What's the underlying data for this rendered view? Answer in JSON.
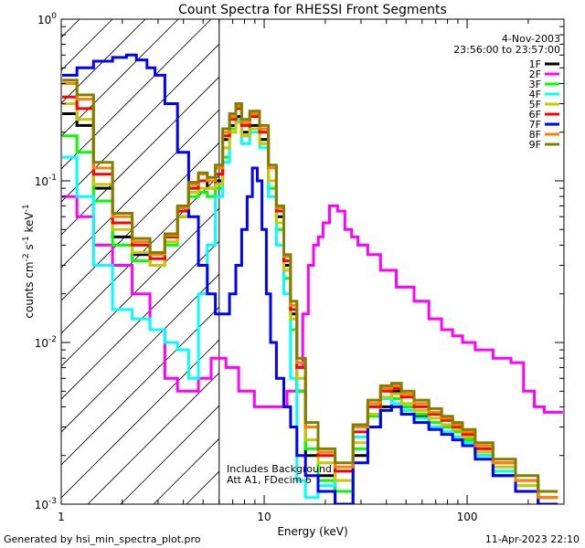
{
  "chart_data": {
    "type": "line",
    "title": "Count Spectra for RHESSI Front Segments",
    "xlabel": "Energy (keV)",
    "ylabel_parts": {
      "a": "counts cm",
      "b": "-2",
      "c": " s",
      "d": "-1",
      "e": " keV",
      "f": "-1"
    },
    "x_scale": "log",
    "y_scale": "log",
    "xlim": [
      1,
      300
    ],
    "ylim": [
      0.001,
      1
    ],
    "x_ticks": [
      {
        "v": 1,
        "label": "1"
      },
      {
        "v": 10,
        "label": "10"
      },
      {
        "v": 100,
        "label": "100"
      }
    ],
    "y_ticks": [
      {
        "v": 1,
        "base": "10",
        "exp": "0"
      },
      {
        "v": 0.1,
        "base": "10",
        "exp": "-1"
      },
      {
        "v": 0.01,
        "base": "10",
        "exp": "-2"
      },
      {
        "v": 0.001,
        "base": "10",
        "exp": "-3"
      }
    ],
    "date": "4-Nov-2003",
    "time_range": "23:56:00 to 23:57:00",
    "shaded_region_xmax": 6,
    "annotations": [
      "Includes Background",
      "Att A1, FDecim 6"
    ],
    "legend_position": "top-right",
    "series": [
      {
        "name": "1F",
        "color": "#000000",
        "x": [
          1.1,
          1.3,
          1.6,
          2,
          2.5,
          3,
          3.5,
          4,
          4.5,
          5,
          5.5,
          6,
          6.5,
          7,
          7.5,
          8,
          9,
          10,
          11,
          12,
          13,
          14,
          15,
          17,
          20,
          25,
          30,
          35,
          40,
          45,
          50,
          60,
          70,
          80,
          90,
          100,
          120,
          150,
          200,
          250
        ],
        "y": [
          0.26,
          0.22,
          0.09,
          0.045,
          0.035,
          0.03,
          0.045,
          0.06,
          0.09,
          0.1,
          0.09,
          0.1,
          0.18,
          0.22,
          0.25,
          0.2,
          0.22,
          0.18,
          0.1,
          0.06,
          0.03,
          0.015,
          0.005,
          0.002,
          0.0015,
          0.001,
          0.002,
          0.003,
          0.004,
          0.005,
          0.004,
          0.0035,
          0.003,
          0.003,
          0.003,
          0.0025,
          0.002,
          0.0015,
          0.0012,
          0.001
        ]
      },
      {
        "name": "2F",
        "color": "#ff00ff",
        "x": [
          1.1,
          1.3,
          1.6,
          2,
          2.5,
          3,
          3.5,
          4,
          4.5,
          5,
          6,
          7,
          8,
          10,
          12,
          14,
          15,
          16,
          17,
          18,
          19,
          20,
          22,
          24,
          26,
          28,
          30,
          35,
          40,
          50,
          60,
          70,
          80,
          90,
          100,
          120,
          150,
          180,
          200,
          230,
          250,
          280
        ],
        "y": [
          0.08,
          0.06,
          0.04,
          0.03,
          0.02,
          0.012,
          0.006,
          0.005,
          0.005,
          0.006,
          0.008,
          0.007,
          0.005,
          0.004,
          0.004,
          0.005,
          0.007,
          0.015,
          0.03,
          0.04,
          0.045,
          0.055,
          0.07,
          0.065,
          0.05,
          0.045,
          0.04,
          0.035,
          0.028,
          0.022,
          0.018,
          0.014,
          0.012,
          0.011,
          0.01,
          0.009,
          0.008,
          0.0075,
          0.005,
          0.004,
          0.0037,
          0.0037
        ]
      },
      {
        "name": "3F",
        "color": "#00ff00",
        "x": [
          1.1,
          1.3,
          1.6,
          2,
          2.5,
          3,
          3.5,
          4,
          4.5,
          5,
          5.5,
          6,
          6.5,
          7,
          7.5,
          8,
          9,
          10,
          11,
          12,
          13,
          14,
          15,
          17,
          20,
          25,
          30,
          35,
          40,
          45,
          50,
          60,
          70,
          80,
          90,
          100,
          120,
          150,
          200,
          250
        ],
        "y": [
          0.19,
          0.15,
          0.075,
          0.04,
          0.032,
          0.03,
          0.04,
          0.06,
          0.08,
          0.085,
          0.08,
          0.09,
          0.14,
          0.21,
          0.24,
          0.19,
          0.21,
          0.17,
          0.09,
          0.05,
          0.025,
          0.012,
          0.005,
          0.0022,
          0.0014,
          0.0012,
          0.0022,
          0.0035,
          0.0045,
          0.0045,
          0.004,
          0.0036,
          0.0032,
          0.003,
          0.0028,
          0.0025,
          0.002,
          0.0016,
          0.0012,
          0.001
        ]
      },
      {
        "name": "4F",
        "color": "#00ffff",
        "x": [
          1.1,
          1.3,
          1.6,
          2,
          2.5,
          3,
          3.5,
          4,
          4.5,
          5,
          5.5,
          6,
          6.5,
          7,
          7.5,
          8,
          9,
          10,
          11,
          12,
          13,
          14,
          15,
          17,
          20,
          25,
          30,
          35,
          40,
          45,
          50,
          60,
          70,
          80,
          90,
          100,
          120,
          150,
          200,
          250
        ],
        "y": [
          0.14,
          0.08,
          0.03,
          0.016,
          0.014,
          0.012,
          0.01,
          0.009,
          0.006,
          0.02,
          0.04,
          0.08,
          0.13,
          0.2,
          0.24,
          0.17,
          0.2,
          0.16,
          0.08,
          0.04,
          0.02,
          0.006,
          0.0014,
          0.0011,
          0.0013,
          0.0016,
          0.0026,
          0.004,
          0.0045,
          0.0042,
          0.0038,
          0.0034,
          0.003,
          0.0028,
          0.0026,
          0.0024,
          0.002,
          0.0016,
          0.0013,
          0.001
        ]
      },
      {
        "name": "5F",
        "color": "#c8c800",
        "x": [
          1.1,
          1.3,
          1.6,
          2,
          2.5,
          3,
          3.5,
          4,
          4.5,
          5,
          5.5,
          6,
          6.5,
          7,
          7.5,
          8,
          9,
          10,
          11,
          12,
          13,
          14,
          15,
          17,
          20,
          25,
          30,
          35,
          40,
          45,
          50,
          60,
          70,
          80,
          90,
          100,
          120,
          150,
          200,
          250
        ],
        "y": [
          0.3,
          0.24,
          0.095,
          0.05,
          0.036,
          0.03,
          0.042,
          0.06,
          0.085,
          0.09,
          0.09,
          0.095,
          0.16,
          0.2,
          0.23,
          0.19,
          0.21,
          0.17,
          0.1,
          0.055,
          0.028,
          0.014,
          0.006,
          0.0025,
          0.0018,
          0.0014,
          0.0024,
          0.0036,
          0.0046,
          0.0048,
          0.0042,
          0.0038,
          0.0034,
          0.0031,
          0.0029,
          0.0026,
          0.0021,
          0.0017,
          0.0013,
          0.0011
        ]
      },
      {
        "name": "6F",
        "color": "#ff0000",
        "x": [
          1.1,
          1.3,
          1.6,
          2,
          2.5,
          3,
          3.5,
          4,
          4.5,
          5,
          5.5,
          6,
          6.5,
          7,
          7.5,
          8,
          9,
          10,
          11,
          12,
          13,
          14,
          15,
          17,
          20,
          25,
          30,
          35,
          40,
          45,
          50,
          60,
          70,
          80,
          90,
          100,
          120,
          150,
          200,
          250
        ],
        "y": [
          0.33,
          0.28,
          0.11,
          0.055,
          0.04,
          0.033,
          0.045,
          0.065,
          0.09,
          0.1,
          0.1,
          0.11,
          0.19,
          0.24,
          0.28,
          0.22,
          0.25,
          0.2,
          0.12,
          0.065,
          0.032,
          0.016,
          0.007,
          0.003,
          0.002,
          0.0016,
          0.0028,
          0.004,
          0.005,
          0.0052,
          0.0046,
          0.004,
          0.0036,
          0.0033,
          0.003,
          0.0027,
          0.0022,
          0.0018,
          0.0014,
          0.0011
        ]
      },
      {
        "name": "7F",
        "color": "#0000ff",
        "x": [
          1.1,
          1.3,
          1.6,
          2,
          2.2,
          2.5,
          2.8,
          3,
          3.5,
          4,
          4.5,
          5,
          5.5,
          6,
          6.5,
          7,
          7.5,
          8,
          8.5,
          9,
          9.5,
          10,
          10.5,
          11,
          12,
          13,
          14,
          15,
          17,
          20,
          25,
          30,
          35,
          40,
          45,
          50,
          60,
          70,
          80,
          90,
          100,
          120,
          150,
          200,
          250
        ],
        "y": [
          0.45,
          0.5,
          0.55,
          0.58,
          0.6,
          0.56,
          0.5,
          0.45,
          0.3,
          0.15,
          0.06,
          0.03,
          0.02,
          0.015,
          0.015,
          0.02,
          0.03,
          0.05,
          0.08,
          0.12,
          0.1,
          0.05,
          0.02,
          0.01,
          0.006,
          0.004,
          0.003,
          0.002,
          0.0015,
          0.0012,
          0.001,
          0.0018,
          0.003,
          0.0038,
          0.004,
          0.0036,
          0.0032,
          0.0029,
          0.0027,
          0.0025,
          0.0023,
          0.0019,
          0.0015,
          0.0012,
          0.001
        ]
      },
      {
        "name": "8F",
        "color": "#ff8000",
        "x": [
          1.1,
          1.3,
          1.6,
          2,
          2.5,
          3,
          3.5,
          4,
          4.5,
          5,
          5.5,
          6,
          6.5,
          7,
          7.5,
          8,
          9,
          10,
          11,
          12,
          13,
          14,
          15,
          17,
          20,
          25,
          30,
          35,
          40,
          45,
          50,
          60,
          70,
          80,
          90,
          100,
          120,
          150,
          200,
          250
        ],
        "y": [
          0.4,
          0.32,
          0.12,
          0.06,
          0.042,
          0.035,
          0.046,
          0.068,
          0.095,
          0.11,
          0.1,
          0.12,
          0.2,
          0.25,
          0.29,
          0.23,
          0.26,
          0.21,
          0.12,
          0.068,
          0.034,
          0.017,
          0.0075,
          0.003,
          0.0021,
          0.0017,
          0.003,
          0.0042,
          0.0052,
          0.0054,
          0.0048,
          0.0042,
          0.0037,
          0.0034,
          0.0031,
          0.0028,
          0.0023,
          0.0018,
          0.0014,
          0.0011
        ]
      },
      {
        "name": "9F",
        "color": "#808000",
        "x": [
          1.1,
          1.3,
          1.6,
          2,
          2.5,
          3,
          3.5,
          4,
          4.5,
          5,
          5.5,
          6,
          6.5,
          7,
          7.5,
          8,
          9,
          10,
          11,
          12,
          13,
          14,
          15,
          17,
          20,
          25,
          30,
          35,
          40,
          45,
          50,
          60,
          70,
          80,
          90,
          100,
          120,
          150,
          200,
          250
        ],
        "y": [
          0.42,
          0.34,
          0.13,
          0.063,
          0.044,
          0.036,
          0.047,
          0.07,
          0.098,
          0.112,
          0.105,
          0.125,
          0.21,
          0.26,
          0.3,
          0.24,
          0.27,
          0.22,
          0.125,
          0.07,
          0.035,
          0.018,
          0.008,
          0.0032,
          0.0022,
          0.0018,
          0.0031,
          0.0044,
          0.0054,
          0.0056,
          0.005,
          0.0044,
          0.0039,
          0.0035,
          0.0032,
          0.0029,
          0.0024,
          0.0019,
          0.0015,
          0.0012
        ]
      }
    ]
  },
  "footer": {
    "left": "Generated by hsi_min_spectra_plot.pro",
    "right": "11-Apr-2023 22:10"
  }
}
